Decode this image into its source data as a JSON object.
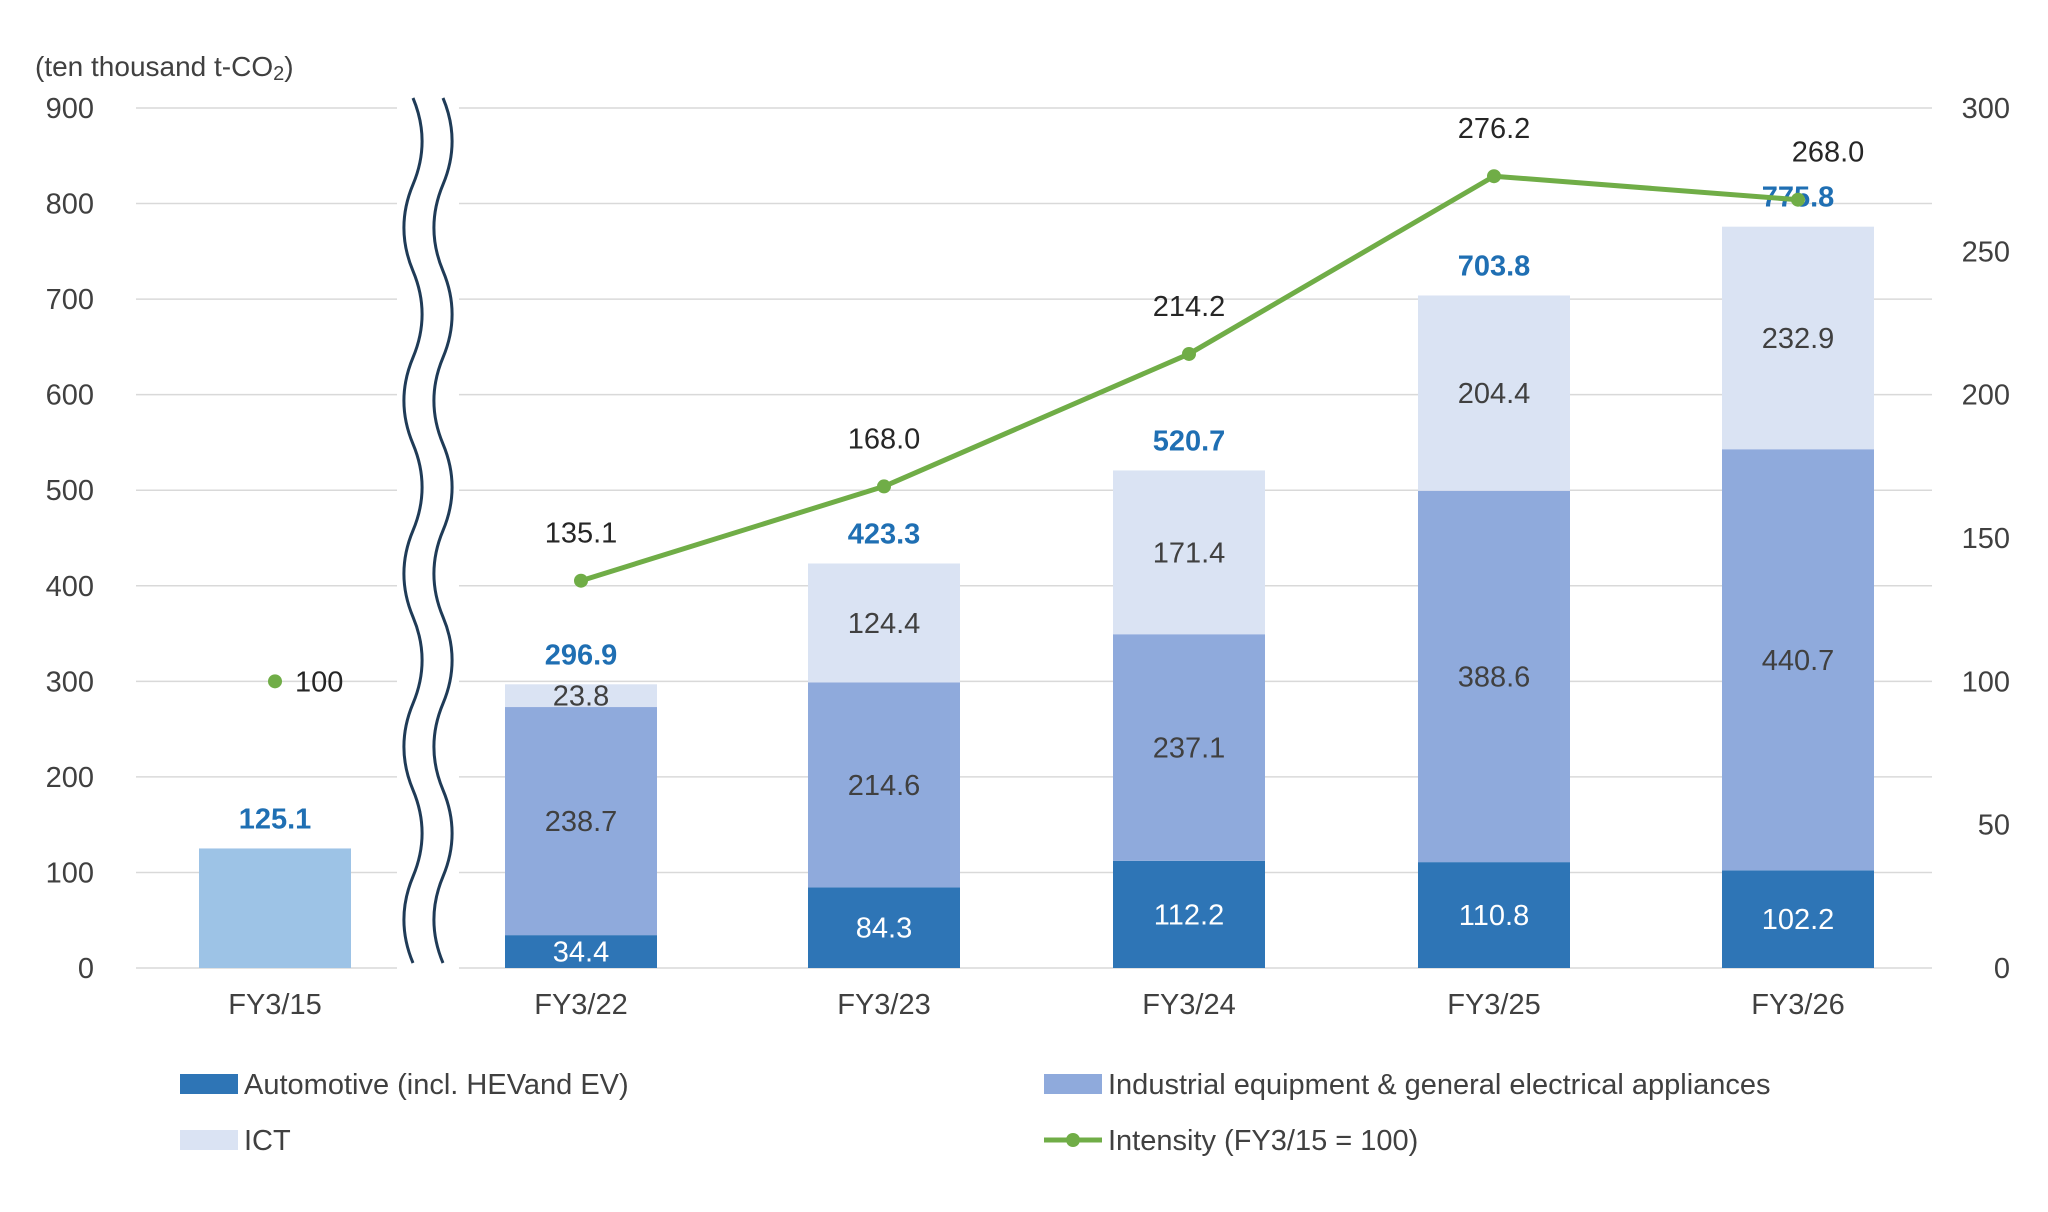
{
  "unit_label": {
    "prefix": "(ten thousand t-CO",
    "subscript": "2",
    "suffix": ")"
  },
  "colors": {
    "automotive": "#2e75b6",
    "industrial": "#8faadc",
    "ict": "#dae3f3",
    "baseline_bar": "#9dc3e6",
    "intensity_line": "#70ad47",
    "total_label": "#1f6fb3",
    "gridline": "#d9d9d9",
    "break_mark": "#1f3b57"
  },
  "chart_data": {
    "type": "bar",
    "stacked": true,
    "categories": [
      "FY3/15",
      "FY3/22",
      "FY3/23",
      "FY3/24",
      "FY3/25",
      "FY3/26"
    ],
    "axis_break_after": "FY3/15",
    "ylim": [
      0,
      900
    ],
    "yticks": [
      "0",
      "100",
      "200",
      "300",
      "400",
      "500",
      "600",
      "700",
      "800",
      "900"
    ],
    "y2lim": [
      0,
      300
    ],
    "y2ticks": [
      "0",
      "50",
      "100",
      "150",
      "200",
      "250",
      "300"
    ],
    "grid": true,
    "legend_position": "bottom",
    "baseline_bar": {
      "category": "FY3/15",
      "value": 125.1,
      "label": "125.1"
    },
    "series": [
      {
        "name": "Automotive (incl. HEVand EV)",
        "color_key": "automotive",
        "label_color": "#ffffff",
        "values": [
          null,
          34.4,
          84.3,
          112.2,
          110.8,
          102.2
        ],
        "labels": [
          "",
          "34.4",
          "84.3",
          "112.2",
          "110.8",
          "102.2"
        ]
      },
      {
        "name": "Industrial equipment & general electrical appliances",
        "color_key": "industrial",
        "label_color": "#404040",
        "values": [
          null,
          238.7,
          214.6,
          237.1,
          388.6,
          440.7
        ],
        "labels": [
          "",
          "238.7",
          "214.6",
          "237.1",
          "388.6",
          "440.7"
        ]
      },
      {
        "name": "ICT",
        "color_key": "ict",
        "label_color": "#404040",
        "values": [
          null,
          23.8,
          124.4,
          171.4,
          204.4,
          232.9
        ],
        "labels": [
          "",
          "23.8",
          "124.4",
          "171.4",
          "204.4",
          "232.9"
        ]
      }
    ],
    "totals": [
      null,
      296.9,
      423.3,
      520.7,
      703.8,
      775.8
    ],
    "total_labels": [
      "",
      "296.9",
      "423.3",
      "520.7",
      "703.8",
      "775.8"
    ],
    "intensity": {
      "name": "Intensity (FY3/15 = 100)",
      "axis": "secondary",
      "values": [
        100,
        135.1,
        168.0,
        214.2,
        276.2,
        268.0
      ],
      "labels": [
        "100",
        "135.1",
        "168.0",
        "214.2",
        "276.2",
        "268.0"
      ]
    },
    "legend": [
      {
        "label": "Automotive (incl. HEVand EV)",
        "swatch": "box",
        "color_key": "automotive"
      },
      {
        "label": "Industrial equipment & general electrical appliances",
        "swatch": "box",
        "color_key": "industrial"
      },
      {
        "label": "ICT",
        "swatch": "box",
        "color_key": "ict"
      },
      {
        "label": "Intensity (FY3/15 = 100)",
        "swatch": "line",
        "color_key": "intensity_line"
      }
    ]
  }
}
